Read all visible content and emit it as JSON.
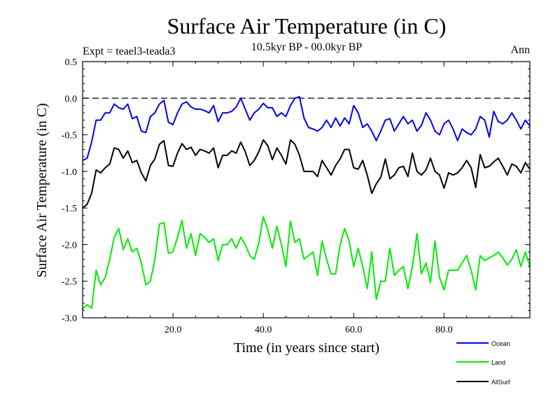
{
  "chart_data": {
    "type": "line",
    "title": "Surface Air Temperature (in C)",
    "subtitle": "10.5kyr BP - 00.0kyr BP",
    "experiment": "Expt = teael3-teada3",
    "period": "Ann",
    "xlabel": "Time (in years since start)",
    "ylabel": "Surface Air Temperature (in C)",
    "xlim": [
      0,
      99
    ],
    "ylim": [
      -3.0,
      0.5
    ],
    "xticks": [
      20,
      40,
      60,
      80
    ],
    "xtick_labels": [
      "20.0",
      "40.0",
      "60.0",
      "80.0"
    ],
    "yticks": [
      0.5,
      0.0,
      -0.5,
      -1.0,
      -1.5,
      -2.0,
      -2.5,
      -3.0
    ],
    "ytick_labels": [
      "0.5",
      "0.0",
      "-0.5",
      "-1.0",
      "-1.5",
      "-2.0",
      "-2.5",
      "-3.0"
    ],
    "reference_line": {
      "y": 0.0,
      "style": "dashed",
      "color": "#000000"
    },
    "legend_position": "bottom-right",
    "series": [
      {
        "name": "Ocean",
        "color": "#0000ee",
        "values": [
          -0.85,
          -0.82,
          -0.6,
          -0.3,
          -0.3,
          -0.2,
          -0.2,
          -0.08,
          -0.13,
          -0.15,
          -0.08,
          -0.28,
          -0.25,
          -0.45,
          -0.47,
          -0.25,
          -0.2,
          -0.08,
          -0.03,
          -0.33,
          -0.36,
          -0.2,
          -0.08,
          -0.05,
          -0.12,
          -0.15,
          -0.15,
          -0.17,
          -0.2,
          -0.1,
          -0.32,
          -0.2,
          -0.2,
          -0.18,
          -0.12,
          0.0,
          -0.15,
          -0.3,
          -0.2,
          -0.15,
          -0.07,
          -0.13,
          -0.13,
          -0.25,
          -0.2,
          -0.25,
          -0.1,
          0.0,
          0.02,
          -0.27,
          -0.4,
          -0.42,
          -0.45,
          -0.4,
          -0.3,
          -0.4,
          -0.27,
          -0.38,
          -0.27,
          -0.35,
          -0.1,
          -0.2,
          -0.4,
          -0.35,
          -0.45,
          -0.58,
          -0.45,
          -0.3,
          -0.28,
          -0.45,
          -0.35,
          -0.25,
          -0.35,
          -0.3,
          -0.45,
          -0.37,
          -0.2,
          -0.3,
          -0.45,
          -0.5,
          -0.35,
          -0.3,
          -0.42,
          -0.58,
          -0.42,
          -0.47,
          -0.5,
          -0.42,
          -0.25,
          -0.3,
          -0.53,
          -0.18,
          -0.32,
          -0.35,
          -0.3,
          -0.2,
          -0.3,
          -0.42,
          -0.3,
          -0.38
        ]
      },
      {
        "name": "Land",
        "color": "#00ee00",
        "values": [
          -2.88,
          -2.82,
          -2.87,
          -2.35,
          -2.55,
          -2.45,
          -2.2,
          -1.9,
          -1.78,
          -2.07,
          -1.92,
          -2.1,
          -2.05,
          -2.25,
          -2.55,
          -2.5,
          -2.2,
          -1.72,
          -1.7,
          -2.12,
          -2.1,
          -1.9,
          -1.67,
          -2.05,
          -1.85,
          -2.15,
          -1.85,
          -1.9,
          -1.97,
          -1.92,
          -2.22,
          -2.0,
          -2.0,
          -1.92,
          -2.05,
          -1.9,
          -2.0,
          -2.15,
          -2.2,
          -1.98,
          -1.62,
          -1.8,
          -2.05,
          -1.75,
          -2.0,
          -2.3,
          -1.68,
          -1.97,
          -1.92,
          -2.2,
          -2.15,
          -2.1,
          -2.42,
          -1.95,
          -2.2,
          -2.4,
          -2.4,
          -2.0,
          -1.78,
          -1.95,
          -2.3,
          -2.05,
          -2.3,
          -2.6,
          -2.1,
          -2.75,
          -2.5,
          -2.5,
          -2.05,
          -2.42,
          -2.35,
          -2.3,
          -2.6,
          -2.3,
          -1.85,
          -2.4,
          -2.25,
          -2.52,
          -1.95,
          -2.45,
          -2.62,
          -2.35,
          -2.35,
          -2.35,
          -2.25,
          -2.15,
          -2.35,
          -2.62,
          -2.15,
          -2.22,
          -2.18,
          -2.15,
          -2.1,
          -2.18,
          -2.28,
          -2.2,
          -2.07,
          -2.3,
          -2.1,
          -2.3
        ]
      },
      {
        "name": "AllSurf",
        "color": "#000000",
        "values": [
          -1.5,
          -1.45,
          -1.3,
          -0.98,
          -1.02,
          -0.95,
          -0.9,
          -0.68,
          -0.7,
          -0.82,
          -0.72,
          -0.88,
          -0.85,
          -1.02,
          -1.13,
          -0.92,
          -0.83,
          -0.63,
          -0.58,
          -0.92,
          -0.93,
          -0.75,
          -0.62,
          -0.7,
          -0.67,
          -0.78,
          -0.7,
          -0.72,
          -0.75,
          -0.68,
          -0.95,
          -0.78,
          -0.78,
          -0.72,
          -0.75,
          -0.6,
          -0.73,
          -0.92,
          -0.85,
          -0.73,
          -0.57,
          -0.65,
          -0.84,
          -0.68,
          -0.78,
          -0.9,
          -0.57,
          -0.63,
          -0.78,
          -1.0,
          -1.0,
          -1.0,
          -1.07,
          -0.85,
          -0.95,
          -1.05,
          -0.92,
          -0.83,
          -0.7,
          -0.7,
          -0.95,
          -0.97,
          -0.85,
          -1.05,
          -1.3,
          -1.17,
          -1.08,
          -0.83,
          -1.1,
          -1.05,
          -0.95,
          -0.93,
          -1.07,
          -0.75,
          -1.0,
          -1.05,
          -0.98,
          -0.82,
          -1.0,
          -1.05,
          -1.23,
          -1.02,
          -1.05,
          -1.02,
          -0.95,
          -0.85,
          -0.95,
          -1.22,
          -0.77,
          -0.95,
          -0.93,
          -0.87,
          -0.82,
          -0.93,
          -1.05,
          -0.9,
          -0.93,
          -1.02,
          -0.88,
          -0.97
        ]
      }
    ]
  }
}
